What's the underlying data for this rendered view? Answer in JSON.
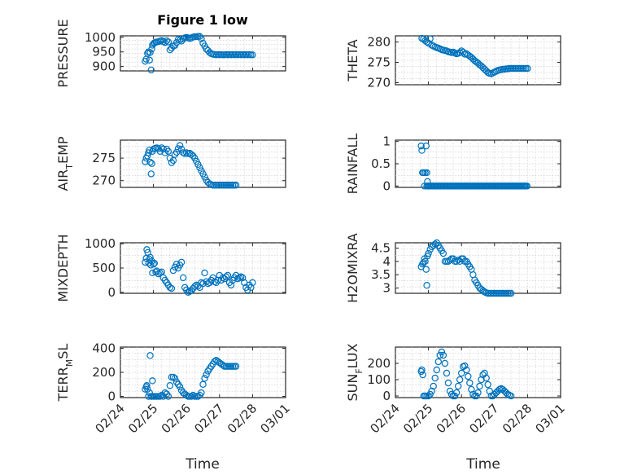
{
  "figure": {
    "title": "Figure 1 low",
    "xlabel": "Time"
  },
  "chart_data": [
    {
      "id": "pressure",
      "type": "scatter",
      "ylabel": "PRESSURE",
      "ylim": [
        885,
        1005
      ],
      "yticks": [
        900,
        950,
        1000
      ],
      "xlim": [
        0,
        5
      ],
      "xticks": [
        "02/24",
        "02/25",
        "02/25",
        "02/26",
        "02/27",
        "02/28",
        "03/01"
      ],
      "xtick_vals": [
        0,
        0.5,
        1,
        2,
        3,
        4,
        5
      ],
      "x": [
        0.75,
        0.78,
        0.82,
        0.85,
        0.88,
        0.9,
        0.93,
        0.95,
        0.97,
        1.0,
        1.03,
        1.07,
        1.1,
        1.15,
        1.2,
        1.25,
        1.3,
        1.35,
        1.4,
        1.45,
        1.5,
        1.55,
        1.6,
        1.65,
        1.7,
        1.75,
        1.8,
        1.85,
        1.9,
        1.95,
        2.0,
        2.05,
        2.1,
        2.15,
        2.2,
        2.25,
        2.3,
        2.35,
        2.4,
        2.45,
        2.5,
        2.55,
        2.6,
        2.65,
        2.7,
        2.75,
        2.8,
        2.85,
        2.9,
        2.95,
        3.0,
        3.05,
        3.1,
        3.15,
        3.2,
        3.25,
        3.3,
        3.35,
        3.4,
        3.45,
        3.5,
        3.55,
        3.6,
        3.65,
        3.7,
        3.75,
        3.8,
        3.85,
        3.9,
        3.95,
        4.0
      ],
      "y": [
        918,
        925,
        945,
        950,
        922,
        948,
        888,
        960,
        973,
        978,
        981,
        983,
        984,
        985,
        987,
        989,
        985,
        982,
        988,
        984,
        957,
        963,
        970,
        972,
        982,
        993,
        990,
        987,
        994,
        998,
        1000,
        998,
        996,
        998,
        1001,
        1002,
        1002,
        1003,
        1003,
        995,
        980,
        970,
        960,
        955,
        948,
        944,
        942,
        941,
        940,
        941,
        940,
        941,
        940,
        940,
        941,
        940,
        941,
        940,
        941,
        940,
        941,
        940,
        941,
        940,
        941,
        940,
        941,
        940,
        941,
        940,
        940
      ]
    },
    {
      "id": "theta",
      "type": "scatter",
      "ylabel": "THETA",
      "ylim": [
        269.5,
        281.5
      ],
      "yticks": [
        270,
        275,
        280
      ],
      "xlim": [
        0,
        5
      ],
      "xticks": [
        "02/24",
        "02/25",
        "02/25",
        "02/26",
        "02/27",
        "02/28",
        "03/01"
      ],
      "xtick_vals": [
        0,
        0.5,
        1,
        2,
        3,
        4,
        5
      ],
      "x": [
        0.8,
        0.85,
        0.9,
        0.95,
        1.0,
        1.05,
        1.1,
        1.15,
        1.2,
        1.25,
        1.3,
        1.35,
        1.4,
        1.45,
        1.5,
        1.55,
        1.6,
        1.65,
        1.7,
        1.75,
        1.8,
        1.85,
        1.9,
        1.95,
        2.0,
        2.05,
        2.1,
        2.15,
        2.2,
        2.25,
        2.3,
        2.35,
        2.4,
        2.45,
        2.5,
        2.55,
        2.6,
        2.65,
        2.7,
        2.75,
        2.8,
        2.85,
        2.9,
        2.95,
        3.0,
        3.05,
        3.1,
        3.15,
        3.2,
        3.25,
        3.3,
        3.35,
        3.4,
        3.45,
        3.5,
        3.55,
        3.6,
        3.65,
        3.7,
        3.75,
        3.8,
        3.85,
        3.9,
        3.95,
        4.0
      ],
      "y": [
        280.9,
        280.7,
        280.3,
        280.0,
        279.7,
        280.8,
        279.2,
        279.0,
        278.8,
        278.6,
        278.5,
        278.3,
        278.1,
        278.0,
        277.9,
        277.8,
        277.6,
        277.5,
        277.4,
        277.5,
        277.3,
        277.1,
        277.2,
        277.4,
        277.8,
        277.5,
        277.0,
        277.1,
        276.8,
        276.5,
        276.2,
        275.8,
        275.4,
        275.1,
        274.8,
        274.4,
        274.1,
        273.7,
        273.3,
        272.9,
        272.5,
        272.3,
        272.2,
        272.4,
        272.6,
        272.8,
        273.0,
        273.1,
        273.2,
        273.3,
        273.3,
        273.4,
        273.4,
        273.5,
        273.5,
        273.5,
        273.5,
        273.5,
        273.5,
        273.5,
        273.5,
        273.5,
        273.5,
        273.5,
        273.5
      ]
    },
    {
      "id": "air_temp",
      "type": "scatter",
      "ylabel_main": "AIR",
      "ylabel_sub": "T",
      "ylabel_tail": "EMP",
      "ylim": [
        268.5,
        279
      ],
      "yticks": [
        270,
        275
      ],
      "xlim": [
        0,
        5
      ],
      "xticks": [
        "02/24",
        "02/25",
        "02/25",
        "02/26",
        "02/27",
        "02/28",
        "03/01"
      ],
      "xtick_vals": [
        0,
        0.5,
        1,
        2,
        3,
        4,
        5
      ],
      "x": [
        0.75,
        0.78,
        0.82,
        0.85,
        0.88,
        0.9,
        0.93,
        0.95,
        0.97,
        1.0,
        1.05,
        1.1,
        1.15,
        1.2,
        1.25,
        1.3,
        1.35,
        1.4,
        1.45,
        1.5,
        1.55,
        1.6,
        1.65,
        1.7,
        1.75,
        1.8,
        1.85,
        1.9,
        1.95,
        2.0,
        2.05,
        2.1,
        2.15,
        2.2,
        2.25,
        2.3,
        2.35,
        2.4,
        2.45,
        2.5,
        2.55,
        2.6,
        2.65,
        2.7,
        2.75,
        2.8,
        2.85,
        2.9,
        2.95,
        3.0,
        3.05,
        3.1,
        3.15,
        3.2,
        3.25,
        3.3,
        3.35,
        3.4,
        3.45,
        3.5
      ],
      "y": [
        274.2,
        275.0,
        275.5,
        276.2,
        276.8,
        274.1,
        271.5,
        273.8,
        276.5,
        277.0,
        277.2,
        277.3,
        277.1,
        276.5,
        277.3,
        277.0,
        276.2,
        277.0,
        276.5,
        275.0,
        274.0,
        274.5,
        275.8,
        276.3,
        277.1,
        277.8,
        277.0,
        276.2,
        276.0,
        276.2,
        276.0,
        276.1,
        275.8,
        275.5,
        275.0,
        274.3,
        273.6,
        272.9,
        272.2,
        271.5,
        270.8,
        270.1,
        269.6,
        269.3,
        269.1,
        269.0,
        269.0,
        269.0,
        269.0,
        269.0,
        269.0,
        269.0,
        269.0,
        269.0,
        269.0,
        269.0,
        269.0,
        269.0,
        269.0,
        269.0
      ]
    },
    {
      "id": "rainfall",
      "type": "scatter",
      "ylabel": "RAINFALL",
      "ylim": [
        -0.03,
        1.03
      ],
      "yticks": [
        0,
        0.5,
        1
      ],
      "ytick_labels": [
        "0",
        "0.5",
        "1"
      ],
      "xlim": [
        0,
        5
      ],
      "xticks": [
        "02/24",
        "02/25",
        "02/25",
        "02/26",
        "02/27",
        "02/28",
        "03/01"
      ],
      "xtick_vals": [
        0,
        0.5,
        1,
        2,
        3,
        4,
        5
      ],
      "x": [
        0.78,
        0.8,
        0.82,
        0.85,
        0.88,
        0.9,
        0.93,
        0.95,
        0.97,
        1.0
      ],
      "y": [
        0.9,
        0.8,
        0.3,
        0.3,
        0.0,
        0.3,
        0.9,
        0.3,
        0.1,
        0.0
      ],
      "zero_run": [
        0.95,
        4.0,
        0.033
      ]
    },
    {
      "id": "mixdepth",
      "type": "scatter",
      "ylabel": "MIXDEPTH",
      "ylim": [
        -20,
        1020
      ],
      "yticks": [
        0,
        500,
        1000
      ],
      "xlim": [
        0,
        5
      ],
      "xticks": [
        "02/24",
        "02/25",
        "02/25",
        "02/26",
        "02/27",
        "02/28",
        "03/01"
      ],
      "xtick_vals": [
        0,
        0.5,
        1,
        2,
        3,
        4,
        5
      ],
      "x": [
        0.75,
        0.78,
        0.8,
        0.83,
        0.86,
        0.88,
        0.9,
        0.92,
        0.95,
        0.97,
        1.0,
        1.03,
        1.07,
        1.1,
        1.15,
        1.2,
        1.25,
        1.3,
        1.35,
        1.4,
        1.45,
        1.5,
        1.55,
        1.6,
        1.65,
        1.7,
        1.75,
        1.8,
        1.85,
        1.9,
        1.95,
        2.0,
        2.05,
        2.1,
        2.15,
        2.2,
        2.25,
        2.3,
        2.35,
        2.4,
        2.45,
        2.5,
        2.55,
        2.6,
        2.65,
        2.7,
        2.75,
        2.8,
        2.85,
        2.9,
        2.95,
        3.0,
        3.05,
        3.1,
        3.15,
        3.2,
        3.25,
        3.3,
        3.35,
        3.4,
        3.45,
        3.5,
        3.55,
        3.6,
        3.65,
        3.7,
        3.75,
        3.8,
        3.85,
        3.9,
        3.95,
        4.0
      ],
      "y": [
        620,
        700,
        880,
        820,
        600,
        680,
        720,
        560,
        640,
        400,
        580,
        600,
        420,
        440,
        380,
        400,
        420,
        300,
        250,
        200,
        150,
        100,
        80,
        450,
        520,
        580,
        500,
        560,
        620,
        300,
        100,
        50,
        0,
        20,
        40,
        80,
        120,
        150,
        130,
        100,
        200,
        180,
        400,
        220,
        180,
        200,
        250,
        300,
        220,
        200,
        250,
        350,
        250,
        300,
        280,
        320,
        350,
        200,
        150,
        250,
        300,
        350,
        280,
        300,
        320,
        300,
        200,
        100,
        50,
        150,
        100,
        200
      ]
    },
    {
      "id": "h2omixra",
      "type": "scatter",
      "ylabel": "H2OMIXRA",
      "ylim": [
        2.8,
        4.7
      ],
      "yticks": [
        3,
        3.5,
        4,
        4.5
      ],
      "ytick_labels": [
        "3",
        "3.5",
        "4",
        "4.5"
      ],
      "xlim": [
        0,
        5
      ],
      "xticks": [
        "02/24",
        "02/25",
        "02/25",
        "02/26",
        "02/27",
        "02/28",
        "03/01"
      ],
      "xtick_vals": [
        0,
        0.5,
        1,
        2,
        3,
        4,
        5
      ],
      "x": [
        0.78,
        0.82,
        0.85,
        0.88,
        0.9,
        0.93,
        0.95,
        0.97,
        1.0,
        1.05,
        1.1,
        1.15,
        1.2,
        1.25,
        1.3,
        1.35,
        1.4,
        1.45,
        1.5,
        1.55,
        1.6,
        1.65,
        1.7,
        1.75,
        1.8,
        1.85,
        1.9,
        1.95,
        2.0,
        2.05,
        2.1,
        2.15,
        2.2,
        2.25,
        2.3,
        2.35,
        2.4,
        2.45,
        2.5,
        2.55,
        2.6,
        2.65,
        2.7,
        2.75,
        2.8,
        2.85,
        2.9,
        2.95,
        3.0,
        3.05,
        3.1,
        3.15,
        3.2,
        3.25,
        3.3,
        3.35,
        3.4,
        3.45,
        3.5
      ],
      "y": [
        3.8,
        3.9,
        3.95,
        4.1,
        4.0,
        3.7,
        3.1,
        4.2,
        4.3,
        4.45,
        4.55,
        4.6,
        4.65,
        4.7,
        4.6,
        4.5,
        4.4,
        4.3,
        4.0,
        4.0,
        4.0,
        4.05,
        4.1,
        4.1,
        4.0,
        4.0,
        4.05,
        4.0,
        4.1,
        4.1,
        4.0,
        4.0,
        3.9,
        3.8,
        3.7,
        3.5,
        3.3,
        3.2,
        3.1,
        3.0,
        2.95,
        2.9,
        2.85,
        2.82,
        2.8,
        2.8,
        2.8,
        2.8,
        2.8,
        2.8,
        2.8,
        2.8,
        2.8,
        2.8,
        2.8,
        2.8,
        2.8,
        2.8,
        2.8
      ]
    },
    {
      "id": "terr_msl",
      "type": "scatter",
      "ylabel_main": "TERR",
      "ylabel_sub": "M",
      "ylabel_tail": "SL",
      "ylim": [
        -10,
        410
      ],
      "yticks": [
        0,
        200,
        400
      ],
      "xlim": [
        0,
        5
      ],
      "xticks": [
        "02/24",
        "02/25",
        "02/25",
        "02/26",
        "02/27",
        "02/28",
        "03/01"
      ],
      "xtick_vals": [
        0,
        0.5,
        1,
        2,
        3,
        4,
        5
      ],
      "x": [
        0.75,
        0.78,
        0.8,
        0.82,
        0.85,
        0.88,
        0.9,
        0.93,
        0.95,
        0.97,
        1.0,
        1.05,
        1.1,
        1.15,
        1.2,
        1.25,
        1.3,
        1.35,
        1.4,
        1.45,
        1.5,
        1.55,
        1.6,
        1.65,
        1.7,
        1.75,
        1.8,
        1.85,
        1.9,
        1.95,
        2.0,
        2.05,
        2.1,
        2.15,
        2.2,
        2.25,
        2.3,
        2.35,
        2.4,
        2.45,
        2.5,
        2.55,
        2.6,
        2.65,
        2.7,
        2.75,
        2.8,
        2.85,
        2.9,
        2.95,
        3.0,
        3.05,
        3.1,
        3.15,
        3.2,
        3.25,
        3.3,
        3.35,
        3.4,
        3.45,
        3.5
      ],
      "y": [
        60,
        80,
        90,
        60,
        0,
        30,
        340,
        0,
        0,
        130,
        0,
        0,
        0,
        0,
        0,
        10,
        0,
        30,
        20,
        0,
        90,
        160,
        160,
        150,
        120,
        100,
        80,
        50,
        30,
        20,
        10,
        0,
        0,
        0,
        10,
        0,
        0,
        0,
        10,
        30,
        100,
        150,
        180,
        210,
        230,
        250,
        270,
        290,
        300,
        290,
        280,
        270,
        260,
        250,
        250,
        250,
        250,
        250,
        250,
        250,
        250
      ]
    },
    {
      "id": "sun_flux",
      "type": "scatter",
      "ylabel_main": "SUN",
      "ylabel_sub": "F",
      "ylabel_tail": "LUX",
      "ylim": [
        -10,
        300
      ],
      "yticks": [
        0,
        100,
        200
      ],
      "xlim": [
        0,
        5
      ],
      "xticks": [
        "02/24",
        "02/25",
        "02/25",
        "02/26",
        "02/27",
        "02/28",
        "03/01"
      ],
      "xtick_vals": [
        0,
        0.5,
        1,
        2,
        3,
        4,
        5
      ],
      "x": [
        0.78,
        0.8,
        0.83,
        0.86,
        0.9,
        0.95,
        1.0,
        1.05,
        1.1,
        1.15,
        1.2,
        1.25,
        1.3,
        1.35,
        1.4,
        1.45,
        1.5,
        1.55,
        1.6,
        1.65,
        1.7,
        1.75,
        1.8,
        1.85,
        1.9,
        1.95,
        2.0,
        2.05,
        2.1,
        2.15,
        2.2,
        2.25,
        2.3,
        2.35,
        2.4,
        2.45,
        2.5,
        2.55,
        2.6,
        2.65,
        2.7,
        2.75,
        2.8,
        2.85,
        2.9,
        2.95,
        3.0,
        3.05,
        3.1,
        3.15,
        3.2,
        3.25,
        3.3,
        3.35,
        3.4,
        3.45,
        3.5
      ],
      "y": [
        150,
        160,
        130,
        0,
        0,
        0,
        0,
        10,
        30,
        60,
        110,
        160,
        210,
        250,
        270,
        250,
        200,
        140,
        80,
        30,
        10,
        0,
        0,
        20,
        60,
        100,
        140,
        180,
        185,
        160,
        120,
        80,
        40,
        10,
        0,
        0,
        20,
        60,
        100,
        130,
        140,
        110,
        70,
        30,
        0,
        0,
        10,
        20,
        30,
        40,
        45,
        40,
        30,
        20,
        10,
        5,
        0
      ]
    }
  ]
}
